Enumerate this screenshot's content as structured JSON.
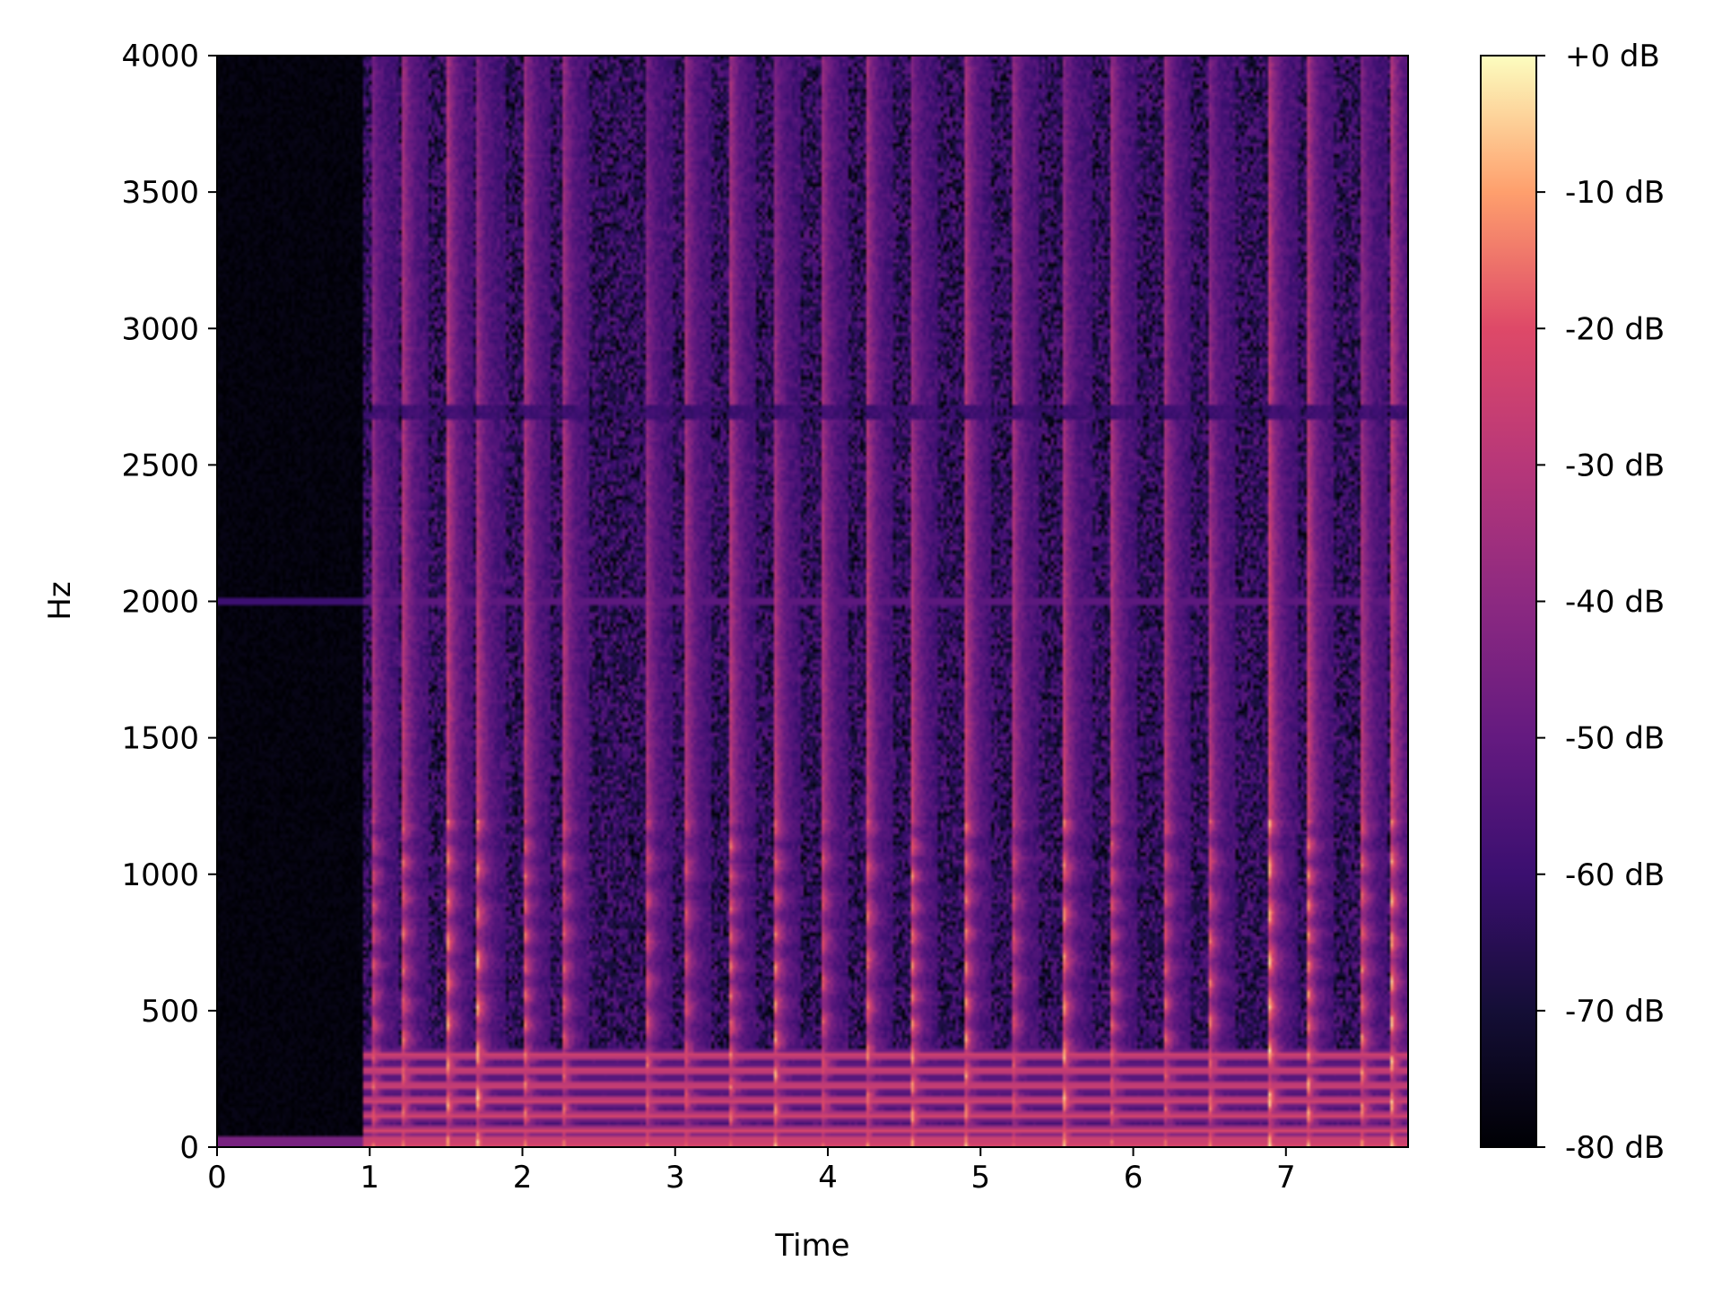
{
  "chart_data": {
    "type": "heatmap",
    "title": "",
    "xlabel": "Time",
    "ylabel": "Hz",
    "xlim": [
      0,
      7.8
    ],
    "ylim": [
      0,
      4000
    ],
    "x_ticks": [
      {
        "value": 0,
        "label": "0"
      },
      {
        "value": 1,
        "label": "1"
      },
      {
        "value": 2,
        "label": "2"
      },
      {
        "value": 3,
        "label": "3"
      },
      {
        "value": 4,
        "label": "4"
      },
      {
        "value": 5,
        "label": "5"
      },
      {
        "value": 6,
        "label": "6"
      },
      {
        "value": 7,
        "label": "7"
      }
    ],
    "y_ticks": [
      {
        "value": 0,
        "label": "0"
      },
      {
        "value": 500,
        "label": "500"
      },
      {
        "value": 1000,
        "label": "1000"
      },
      {
        "value": 1500,
        "label": "1500"
      },
      {
        "value": 2000,
        "label": "2000"
      },
      {
        "value": 2500,
        "label": "2500"
      },
      {
        "value": 3000,
        "label": "3000"
      },
      {
        "value": 3500,
        "label": "3500"
      },
      {
        "value": 4000,
        "label": "4000"
      }
    ],
    "colorbar": {
      "range": [
        -80,
        0
      ],
      "colormap": "magma",
      "ticks": [
        {
          "value": 0,
          "label": "+0 dB"
        },
        {
          "value": -10,
          "label": "-10 dB"
        },
        {
          "value": -20,
          "label": "-20 dB"
        },
        {
          "value": -30,
          "label": "-30 dB"
        },
        {
          "value": -40,
          "label": "-40 dB"
        },
        {
          "value": -50,
          "label": "-50 dB"
        },
        {
          "value": -60,
          "label": "-60 dB"
        },
        {
          "value": -70,
          "label": "-70 dB"
        },
        {
          "value": -80,
          "label": "-80 dB"
        }
      ]
    },
    "silence_end_time": 1.0,
    "noise_floor_db": -62,
    "onsets": [
      1.0,
      1.2,
      1.5,
      1.7,
      2.0,
      2.25,
      2.8,
      3.05,
      3.35,
      3.65,
      3.95,
      4.25,
      4.55,
      4.9,
      5.2,
      5.55,
      5.85,
      6.2,
      6.5,
      6.9,
      7.15,
      7.5,
      7.7
    ],
    "hum_bands_hz": [
      2000,
      2700
    ]
  }
}
